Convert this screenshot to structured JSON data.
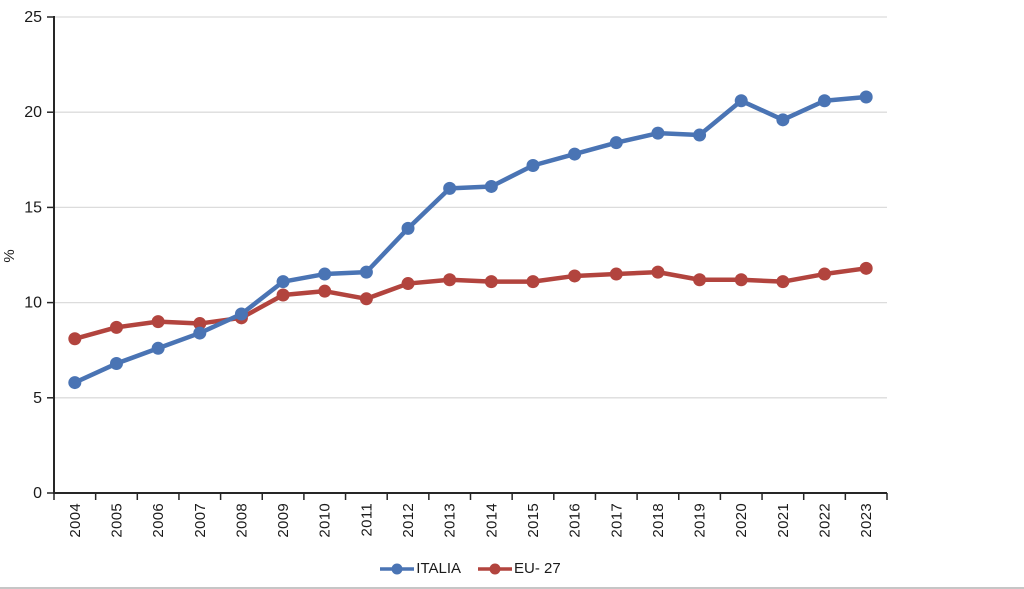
{
  "chart_data": {
    "type": "line",
    "ylabel": "%",
    "x": [
      "2004",
      "2005",
      "2006",
      "2007",
      "2008",
      "2009",
      "2010",
      "2011",
      "2012",
      "2013",
      "2014",
      "2015",
      "2016",
      "2017",
      "2018",
      "2019",
      "2020",
      "2021",
      "2022",
      "2023"
    ],
    "series": [
      {
        "name": "ITALIA",
        "color": "#4a74b4",
        "values": [
          5.8,
          6.8,
          7.6,
          8.4,
          9.4,
          11.1,
          11.5,
          11.6,
          13.9,
          16.0,
          16.1,
          17.2,
          17.8,
          18.4,
          18.9,
          18.8,
          20.6,
          19.6,
          20.6,
          20.8
        ]
      },
      {
        "name": "EU- 27",
        "color": "#b2443e",
        "values": [
          8.1,
          8.7,
          9.0,
          8.9,
          9.2,
          10.4,
          10.6,
          10.2,
          11.0,
          11.2,
          11.1,
          11.1,
          11.4,
          11.5,
          11.6,
          11.2,
          11.2,
          11.1,
          11.5,
          11.8
        ]
      }
    ],
    "ylim": [
      0,
      25
    ],
    "yticks": [
      0,
      5,
      10,
      15,
      20,
      25
    ],
    "grid": "horizontal",
    "legend_position": "bottom",
    "colors": {
      "gridline": "#dcdcdc",
      "axis": "#262626",
      "text": "#1a1a1a"
    }
  }
}
